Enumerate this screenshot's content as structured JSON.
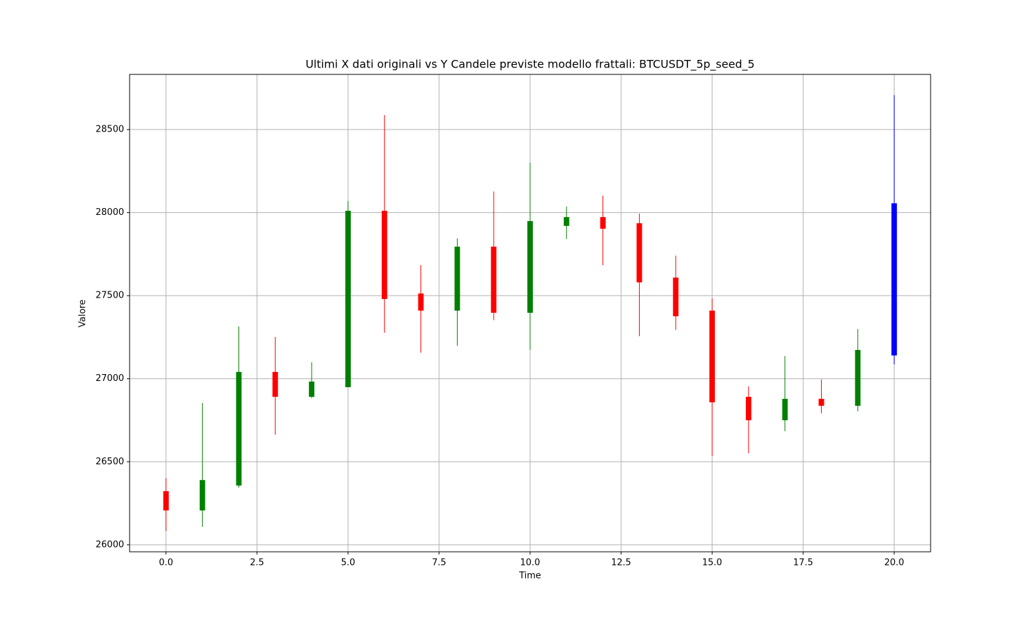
{
  "chart_data": {
    "type": "candlestick",
    "title": "Ultimi X dati originali vs Y Candele previste modello frattali: BTCUSDT_5p_seed_5",
    "x_label": "Time",
    "y_label": "Valore",
    "x": [
      0,
      1,
      2,
      3,
      4,
      5,
      6,
      7,
      8,
      9,
      10,
      11,
      12,
      13,
      14,
      15,
      16,
      17,
      18,
      19,
      20
    ],
    "open": [
      26323,
      26207,
      26357,
      27041,
      26891,
      26949,
      28011,
      27513,
      27410,
      27795,
      27397,
      27920,
      27973,
      27936,
      27609,
      27410,
      26891,
      26750,
      26879,
      26837,
      27140
    ],
    "high": [
      26402,
      26854,
      27314,
      27252,
      27099,
      28069,
      28587,
      27683,
      27845,
      28127,
      28301,
      28036,
      28102,
      27994,
      27741,
      27484,
      26954,
      27136,
      26995,
      27298,
      28707
    ],
    "low": [
      26083,
      26108,
      26344,
      26663,
      26883,
      26949,
      27277,
      27157,
      27198,
      27352,
      27173,
      27841,
      27683,
      27256,
      27294,
      26535,
      26551,
      26684,
      26792,
      26804,
      27086
    ],
    "close": [
      26207,
      26390,
      27041,
      26891,
      26983,
      28011,
      27480,
      27410,
      27795,
      27397,
      27949,
      27973,
      27903,
      27580,
      27376,
      26858,
      26750,
      26879,
      26837,
      27173,
      28056
    ],
    "colors": [
      "red",
      "green",
      "green",
      "red",
      "green",
      "green",
      "red",
      "red",
      "green",
      "red",
      "green",
      "green",
      "red",
      "red",
      "red",
      "red",
      "red",
      "green",
      "red",
      "green",
      "blue"
    ],
    "xlim": [
      -1,
      21
    ],
    "xticks": [
      {
        "value": 0,
        "label": "0.0"
      },
      2.5,
      {
        "value": 5,
        "label": "5.0"
      },
      7.5,
      {
        "value": 10,
        "label": "10.0"
      },
      12.5,
      {
        "value": 15,
        "label": "15.0"
      },
      17.5,
      {
        "value": 20,
        "label": "20.0"
      }
    ],
    "ylim": [
      25958,
      28832
    ],
    "yticks": [
      26000,
      26500,
      27000,
      27500,
      28000,
      28500
    ],
    "grid": true
  }
}
